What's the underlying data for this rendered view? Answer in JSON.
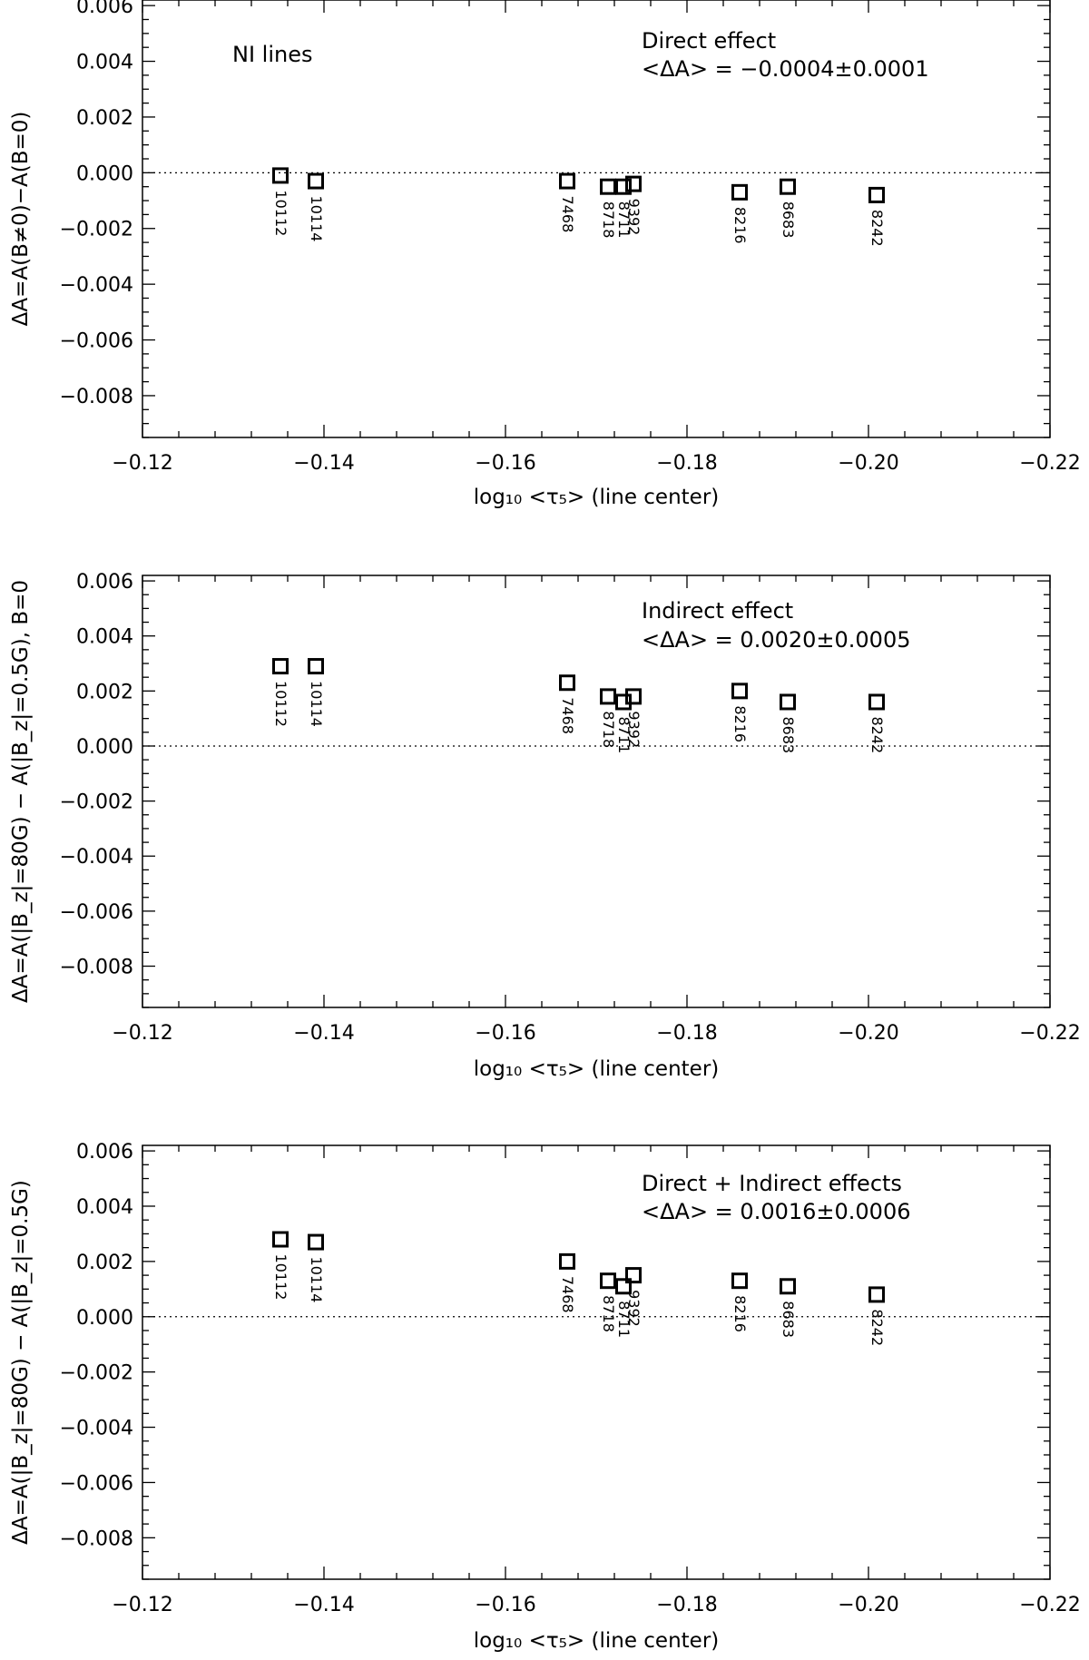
{
  "chart_data": [
    {
      "type": "scatter",
      "panel_label": "NI lines",
      "annotation_title": "Direct effect",
      "annotation_value": "<ΔA> = −0.0004±0.0001",
      "xlabel": "log₁₀ <τ₅> (line center)",
      "ylabel": "ΔA=A(B≠0)−A(B=0)",
      "xlim": [
        -0.12,
        -0.22
      ],
      "ylim": [
        -0.0095,
        0.0062
      ],
      "x_ticks": [
        -0.12,
        -0.14,
        -0.16,
        -0.18,
        -0.2,
        -0.22
      ],
      "y_ticks": [
        -0.008,
        -0.006,
        -0.004,
        -0.002,
        0.0,
        0.002,
        0.004,
        0.006
      ],
      "x_tick_labels": [
        "−0.12",
        "−0.14",
        "−0.16",
        "−0.18",
        "−0.20",
        "−0.22"
      ],
      "y_tick_labels": [
        "−0.008",
        "−0.006",
        "−0.004",
        "−0.002",
        "0.000",
        "0.002",
        "0.004",
        "0.006"
      ],
      "reference_line": 0.0,
      "points": [
        {
          "label": "10112",
          "x": -0.1352,
          "y": -0.0001
        },
        {
          "label": "10114",
          "x": -0.1391,
          "y": -0.0003
        },
        {
          "label": "7468",
          "x": -0.1668,
          "y": -0.0003
        },
        {
          "label": "8718",
          "x": -0.1713,
          "y": -0.0005
        },
        {
          "label": "8711",
          "x": -0.173,
          "y": -0.0005
        },
        {
          "label": "9392",
          "x": -0.1741,
          "y": -0.0004
        },
        {
          "label": "8216",
          "x": -0.1858,
          "y": -0.0007
        },
        {
          "label": "8683",
          "x": -0.1911,
          "y": -0.0005
        },
        {
          "label": "8242",
          "x": -0.2009,
          "y": -0.0008
        }
      ]
    },
    {
      "type": "scatter",
      "panel_label": "",
      "annotation_title": "Indirect effect",
      "annotation_value": "<ΔA> = 0.0020±0.0005",
      "xlabel": "log₁₀ <τ₅> (line center)",
      "ylabel": "ΔA=A(|B_z|=80G) − A(|B_z|=0.5G), B=0",
      "xlim": [
        -0.12,
        -0.22
      ],
      "ylim": [
        -0.0095,
        0.0062
      ],
      "x_ticks": [
        -0.12,
        -0.14,
        -0.16,
        -0.18,
        -0.2,
        -0.22
      ],
      "y_ticks": [
        -0.008,
        -0.006,
        -0.004,
        -0.002,
        0.0,
        0.002,
        0.004,
        0.006
      ],
      "x_tick_labels": [
        "−0.12",
        "−0.14",
        "−0.16",
        "−0.18",
        "−0.20",
        "−0.22"
      ],
      "y_tick_labels": [
        "−0.008",
        "−0.006",
        "−0.004",
        "−0.002",
        "0.000",
        "0.002",
        "0.004",
        "0.006"
      ],
      "reference_line": 0.0,
      "points": [
        {
          "label": "10112",
          "x": -0.1352,
          "y": 0.0029
        },
        {
          "label": "10114",
          "x": -0.1391,
          "y": 0.0029
        },
        {
          "label": "7468",
          "x": -0.1668,
          "y": 0.0023
        },
        {
          "label": "8718",
          "x": -0.1713,
          "y": 0.0018
        },
        {
          "label": "8711",
          "x": -0.173,
          "y": 0.0016
        },
        {
          "label": "9392",
          "x": -0.1741,
          "y": 0.0018
        },
        {
          "label": "8216",
          "x": -0.1858,
          "y": 0.002
        },
        {
          "label": "8683",
          "x": -0.1911,
          "y": 0.0016
        },
        {
          "label": "8242",
          "x": -0.2009,
          "y": 0.0016
        }
      ]
    },
    {
      "type": "scatter",
      "panel_label": "",
      "annotation_title": "Direct + Indirect effects",
      "annotation_value": "<ΔA> = 0.0016±0.0006",
      "xlabel": "log₁₀ <τ₅> (line center)",
      "ylabel": "ΔA=A(|B_z|=80G) − A(|B_z|=0.5G)",
      "xlim": [
        -0.12,
        -0.22
      ],
      "ylim": [
        -0.0095,
        0.0062
      ],
      "x_ticks": [
        -0.12,
        -0.14,
        -0.16,
        -0.18,
        -0.2,
        -0.22
      ],
      "y_ticks": [
        -0.008,
        -0.006,
        -0.004,
        -0.002,
        0.0,
        0.002,
        0.004,
        0.006
      ],
      "x_tick_labels": [
        "−0.12",
        "−0.14",
        "−0.16",
        "−0.18",
        "−0.20",
        "−0.22"
      ],
      "y_tick_labels": [
        "−0.008",
        "−0.006",
        "−0.004",
        "−0.002",
        "0.000",
        "0.002",
        "0.004",
        "0.006"
      ],
      "reference_line": 0.0,
      "points": [
        {
          "label": "10112",
          "x": -0.1352,
          "y": 0.0028
        },
        {
          "label": "10114",
          "x": -0.1391,
          "y": 0.0027
        },
        {
          "label": "7468",
          "x": -0.1668,
          "y": 0.002
        },
        {
          "label": "8718",
          "x": -0.1713,
          "y": 0.0013
        },
        {
          "label": "8711",
          "x": -0.173,
          "y": 0.0011
        },
        {
          "label": "9392",
          "x": -0.1741,
          "y": 0.0015
        },
        {
          "label": "8216",
          "x": -0.1858,
          "y": 0.0013
        },
        {
          "label": "8683",
          "x": -0.1911,
          "y": 0.0011
        },
        {
          "label": "8242",
          "x": -0.2009,
          "y": 0.0008
        }
      ]
    }
  ]
}
